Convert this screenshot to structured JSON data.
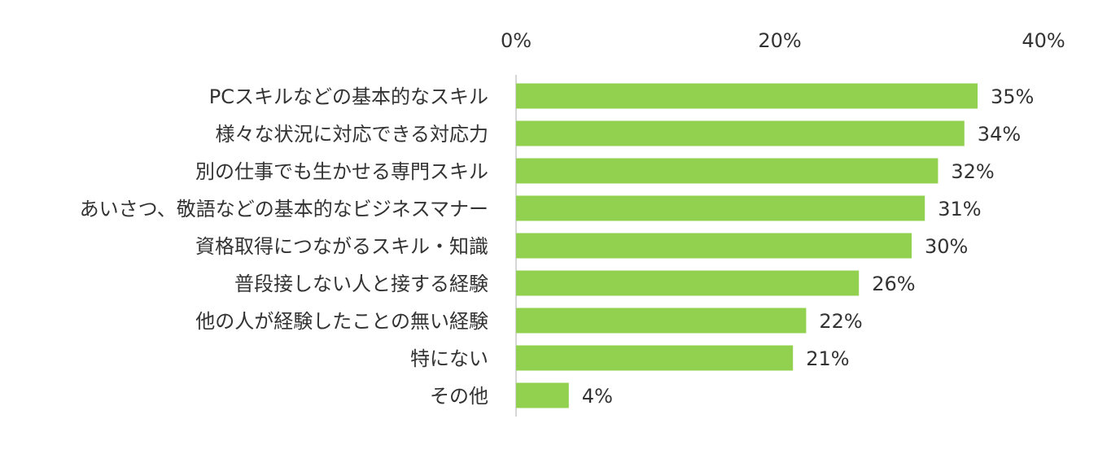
{
  "chart_data": {
    "type": "bar",
    "orientation": "horizontal",
    "categories": [
      "PCスキルなどの基本的なスキル",
      "様々な状況に対応できる対応力",
      "別の仕事でも生かせる専門スキル",
      "あいさつ、敬語などの基本的なビジネスマナー",
      "資格取得につながるスキル・知識",
      "普段接しない人と接する経験",
      "他の人が経験したことの無い経験",
      "特にない",
      "その他"
    ],
    "values": [
      35,
      34,
      32,
      31,
      30,
      26,
      22,
      21,
      4
    ],
    "value_labels": [
      "35%",
      "34%",
      "32%",
      "31%",
      "30%",
      "26%",
      "22%",
      "21%",
      "4%"
    ],
    "xlim": [
      0,
      40
    ],
    "ticks": [
      0,
      20,
      40
    ],
    "tick_labels": [
      "0%",
      "20%",
      "40%"
    ],
    "axis_position": "top",
    "grid": false,
    "title": "",
    "xlabel": "",
    "ylabel": "",
    "colors": {
      "bar": "#92d050",
      "axis": "#c8c8c8",
      "text": "#333333"
    }
  }
}
